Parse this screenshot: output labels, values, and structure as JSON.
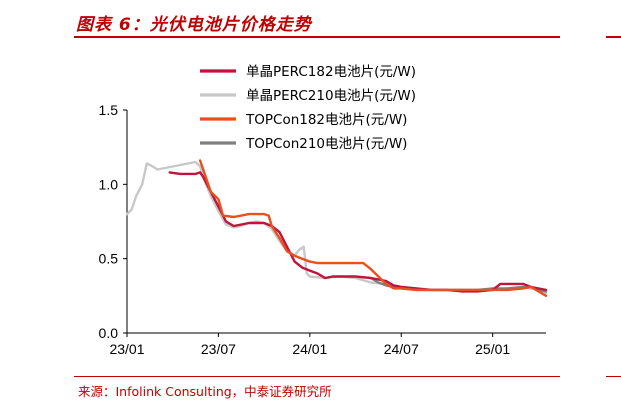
{
  "title": "图表 6：光伏电池片价格走势",
  "source": "来源：Infolink Consulting，中泰证券研究所",
  "colors": {
    "accent": "#c00000",
    "perc182": "#c0143c",
    "perc210": "#c8c8c8",
    "topcon182": "#e8501e",
    "topcon210": "#7f7f7f"
  },
  "chart_data": {
    "type": "line",
    "title": "光伏电池片价格走势",
    "xlabel": "",
    "ylabel": "",
    "ylim": [
      0.0,
      1.5
    ],
    "yticks": [
      "0.0",
      "0.5",
      "1.0",
      "1.5"
    ],
    "xlim": [
      0,
      27.5
    ],
    "xticks": [
      {
        "label": "23/01",
        "x": 0
      },
      {
        "label": "23/07",
        "x": 6
      },
      {
        "label": "24/01",
        "x": 12
      },
      {
        "label": "24/07",
        "x": 18
      },
      {
        "label": "25/01",
        "x": 24
      }
    ],
    "legend_position": "top",
    "series": [
      {
        "name": "单晶PERC182电池片(元/W)",
        "color_key": "perc182",
        "points": [
          [
            2.8,
            1.08
          ],
          [
            3.5,
            1.07
          ],
          [
            4.5,
            1.07
          ],
          [
            4.8,
            1.08
          ],
          [
            5.0,
            1.05
          ],
          [
            5.5,
            0.95
          ],
          [
            6.0,
            0.85
          ],
          [
            6.5,
            0.75
          ],
          [
            7.0,
            0.72
          ],
          [
            7.5,
            0.73
          ],
          [
            8.0,
            0.74
          ],
          [
            8.5,
            0.74
          ],
          [
            9.0,
            0.74
          ],
          [
            9.5,
            0.72
          ],
          [
            10.0,
            0.68
          ],
          [
            10.5,
            0.58
          ],
          [
            11.0,
            0.48
          ],
          [
            11.5,
            0.44
          ],
          [
            12.0,
            0.42
          ],
          [
            12.5,
            0.4
          ],
          [
            13.0,
            0.37
          ],
          [
            13.5,
            0.38
          ],
          [
            14.0,
            0.38
          ],
          [
            15.0,
            0.38
          ],
          [
            16.0,
            0.37
          ],
          [
            17.0,
            0.35
          ],
          [
            17.5,
            0.32
          ],
          [
            18.0,
            0.31
          ],
          [
            19.0,
            0.3
          ],
          [
            20.0,
            0.29
          ],
          [
            21.0,
            0.29
          ],
          [
            22.0,
            0.28
          ],
          [
            23.0,
            0.28
          ],
          [
            24.0,
            0.29
          ],
          [
            24.5,
            0.33
          ],
          [
            25.0,
            0.33
          ],
          [
            26.0,
            0.33
          ],
          [
            26.5,
            0.31
          ],
          [
            27.0,
            0.3
          ],
          [
            27.5,
            0.29
          ]
        ]
      },
      {
        "name": "单晶PERC210电池片(元/W)",
        "color_key": "perc210",
        "points": [
          [
            0.0,
            0.8
          ],
          [
            0.3,
            0.83
          ],
          [
            0.6,
            0.92
          ],
          [
            1.0,
            1.0
          ],
          [
            1.3,
            1.14
          ],
          [
            1.7,
            1.12
          ],
          [
            2.0,
            1.1
          ],
          [
            2.5,
            1.11
          ],
          [
            3.0,
            1.12
          ],
          [
            3.5,
            1.13
          ],
          [
            4.0,
            1.14
          ],
          [
            4.5,
            1.15
          ],
          [
            4.8,
            1.12
          ],
          [
            5.0,
            1.05
          ],
          [
            5.5,
            0.92
          ],
          [
            6.0,
            0.82
          ],
          [
            6.5,
            0.73
          ],
          [
            7.0,
            0.71
          ],
          [
            7.5,
            0.72
          ],
          [
            8.0,
            0.74
          ],
          [
            8.5,
            0.75
          ],
          [
            9.0,
            0.74
          ],
          [
            9.5,
            0.7
          ],
          [
            10.0,
            0.62
          ],
          [
            10.5,
            0.55
          ],
          [
            11.0,
            0.52
          ],
          [
            11.3,
            0.56
          ],
          [
            11.6,
            0.58
          ],
          [
            11.8,
            0.4
          ],
          [
            12.0,
            0.38
          ],
          [
            13.0,
            0.37
          ],
          [
            14.0,
            0.38
          ],
          [
            15.0,
            0.37
          ],
          [
            16.0,
            0.34
          ],
          [
            17.0,
            0.33
          ],
          [
            17.5,
            0.31
          ],
          [
            18.0,
            0.31
          ],
          [
            19.0,
            0.3
          ],
          [
            20.0,
            0.29
          ],
          [
            21.0,
            0.29
          ],
          [
            22.0,
            0.29
          ],
          [
            23.0,
            0.29
          ],
          [
            24.0,
            0.29
          ],
          [
            25.0,
            0.3
          ],
          [
            26.0,
            0.31
          ],
          [
            27.0,
            0.29
          ],
          [
            27.5,
            0.27
          ]
        ]
      },
      {
        "name": "TOPCon182电池片(元/W)",
        "color_key": "topcon182",
        "points": [
          [
            4.8,
            1.16
          ],
          [
            5.0,
            1.1
          ],
          [
            5.5,
            0.95
          ],
          [
            6.0,
            0.9
          ],
          [
            6.3,
            0.79
          ],
          [
            7.0,
            0.78
          ],
          [
            7.5,
            0.79
          ],
          [
            8.0,
            0.8
          ],
          [
            8.5,
            0.8
          ],
          [
            9.0,
            0.8
          ],
          [
            9.3,
            0.79
          ],
          [
            9.5,
            0.72
          ],
          [
            10.0,
            0.64
          ],
          [
            10.5,
            0.55
          ],
          [
            11.0,
            0.52
          ],
          [
            11.5,
            0.5
          ],
          [
            12.0,
            0.48
          ],
          [
            12.5,
            0.47
          ],
          [
            13.0,
            0.47
          ],
          [
            14.0,
            0.47
          ],
          [
            15.0,
            0.47
          ],
          [
            15.5,
            0.47
          ],
          [
            16.0,
            0.43
          ],
          [
            16.5,
            0.38
          ],
          [
            17.0,
            0.33
          ],
          [
            17.5,
            0.3
          ],
          [
            18.0,
            0.3
          ],
          [
            19.0,
            0.29
          ],
          [
            20.0,
            0.29
          ],
          [
            21.0,
            0.29
          ],
          [
            22.0,
            0.29
          ],
          [
            23.0,
            0.29
          ],
          [
            24.0,
            0.29
          ],
          [
            25.0,
            0.29
          ],
          [
            26.0,
            0.3
          ],
          [
            26.5,
            0.31
          ],
          [
            27.0,
            0.28
          ],
          [
            27.5,
            0.25
          ]
        ]
      },
      {
        "name": "TOPCon210电池片(元/W)",
        "color_key": "topcon210",
        "points": [
          [
            16.0,
            0.37
          ],
          [
            16.5,
            0.34
          ],
          [
            17.0,
            0.32
          ],
          [
            17.5,
            0.31
          ],
          [
            18.0,
            0.3
          ],
          [
            19.0,
            0.29
          ],
          [
            20.0,
            0.29
          ],
          [
            21.0,
            0.29
          ],
          [
            22.0,
            0.29
          ],
          [
            23.0,
            0.29
          ],
          [
            24.0,
            0.3
          ],
          [
            25.0,
            0.3
          ],
          [
            26.0,
            0.31
          ],
          [
            26.5,
            0.31
          ],
          [
            27.0,
            0.29
          ],
          [
            27.5,
            0.28
          ]
        ]
      }
    ]
  }
}
